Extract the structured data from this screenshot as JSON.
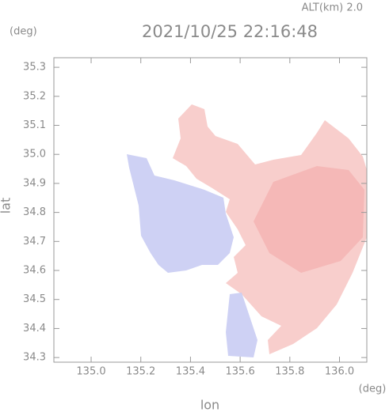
{
  "chart_data": {
    "type": "map",
    "title": "2021/10/25 22:16:48",
    "subtitle": "ALT(km) 2.0",
    "x_label": "lon",
    "x_unit": "(deg)",
    "y_label": "lat",
    "y_unit": "(deg)",
    "xlim": [
      134.85,
      136.11
    ],
    "xticks": [
      {
        "value": 135,
        "label": "135.0"
      },
      135.2,
      135.4,
      135.6,
      135.8,
      {
        "value": 136,
        "label": "136.0"
      }
    ],
    "ylim": [
      34.284,
      35.333
    ],
    "yticks": [
      34.3,
      34.4,
      34.5,
      34.6,
      34.7,
      34.8,
      34.9,
      {
        "value": 35,
        "label": "35.0"
      },
      35.1,
      35.2,
      35.3
    ]
  }
}
